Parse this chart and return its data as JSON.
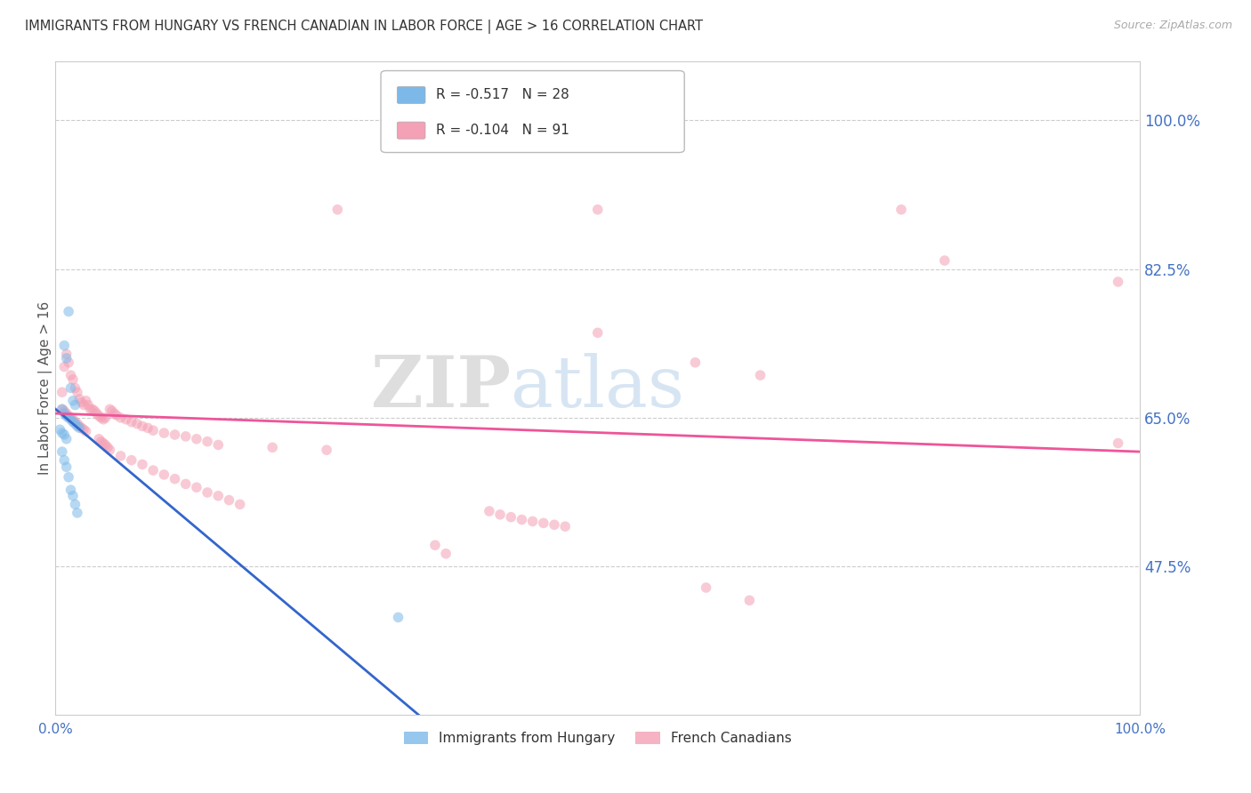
{
  "title": "IMMIGRANTS FROM HUNGARY VS FRENCH CANADIAN IN LABOR FORCE | AGE > 16 CORRELATION CHART",
  "source_text": "Source: ZipAtlas.com",
  "ylabel": "In Labor Force | Age > 16",
  "xlim": [
    0.0,
    1.0
  ],
  "ylim": [
    0.3,
    1.07
  ],
  "yticks": [
    0.475,
    0.65,
    0.825,
    1.0
  ],
  "ytick_labels": [
    "47.5%",
    "65.0%",
    "82.5%",
    "100.0%"
  ],
  "xticks": [
    0.0,
    0.2,
    0.4,
    0.6,
    0.8,
    1.0
  ],
  "xtick_labels": [
    "0.0%",
    "",
    "",
    "",
    "",
    "100.0%"
  ],
  "hungary_points": [
    [
      0.012,
      0.775
    ],
    [
      0.008,
      0.735
    ],
    [
      0.01,
      0.72
    ],
    [
      0.014,
      0.685
    ],
    [
      0.016,
      0.67
    ],
    [
      0.018,
      0.665
    ],
    [
      0.006,
      0.66
    ],
    [
      0.008,
      0.655
    ],
    [
      0.01,
      0.652
    ],
    [
      0.012,
      0.65
    ],
    [
      0.014,
      0.648
    ],
    [
      0.016,
      0.645
    ],
    [
      0.018,
      0.643
    ],
    [
      0.02,
      0.64
    ],
    [
      0.022,
      0.638
    ],
    [
      0.004,
      0.636
    ],
    [
      0.006,
      0.632
    ],
    [
      0.008,
      0.63
    ],
    [
      0.01,
      0.625
    ],
    [
      0.006,
      0.61
    ],
    [
      0.008,
      0.6
    ],
    [
      0.01,
      0.592
    ],
    [
      0.012,
      0.58
    ],
    [
      0.014,
      0.565
    ],
    [
      0.016,
      0.558
    ],
    [
      0.018,
      0.548
    ],
    [
      0.02,
      0.538
    ],
    [
      0.316,
      0.415
    ]
  ],
  "french_points": [
    [
      0.006,
      0.68
    ],
    [
      0.008,
      0.71
    ],
    [
      0.01,
      0.725
    ],
    [
      0.012,
      0.715
    ],
    [
      0.014,
      0.7
    ],
    [
      0.016,
      0.695
    ],
    [
      0.018,
      0.685
    ],
    [
      0.02,
      0.68
    ],
    [
      0.022,
      0.672
    ],
    [
      0.024,
      0.668
    ],
    [
      0.026,
      0.665
    ],
    [
      0.028,
      0.67
    ],
    [
      0.03,
      0.665
    ],
    [
      0.032,
      0.66
    ],
    [
      0.034,
      0.66
    ],
    [
      0.036,
      0.658
    ],
    [
      0.038,
      0.655
    ],
    [
      0.04,
      0.652
    ],
    [
      0.042,
      0.65
    ],
    [
      0.044,
      0.648
    ],
    [
      0.046,
      0.65
    ],
    [
      0.05,
      0.66
    ],
    [
      0.052,
      0.658
    ],
    [
      0.054,
      0.655
    ],
    [
      0.056,
      0.653
    ],
    [
      0.06,
      0.65
    ],
    [
      0.065,
      0.648
    ],
    [
      0.07,
      0.645
    ],
    [
      0.075,
      0.643
    ],
    [
      0.08,
      0.64
    ],
    [
      0.085,
      0.638
    ],
    [
      0.09,
      0.635
    ],
    [
      0.1,
      0.632
    ],
    [
      0.11,
      0.63
    ],
    [
      0.12,
      0.628
    ],
    [
      0.13,
      0.625
    ],
    [
      0.14,
      0.622
    ],
    [
      0.15,
      0.618
    ],
    [
      0.2,
      0.615
    ],
    [
      0.25,
      0.612
    ],
    [
      0.006,
      0.66
    ],
    [
      0.008,
      0.658
    ],
    [
      0.01,
      0.655
    ],
    [
      0.012,
      0.652
    ],
    [
      0.014,
      0.65
    ],
    [
      0.016,
      0.648
    ],
    [
      0.018,
      0.645
    ],
    [
      0.02,
      0.643
    ],
    [
      0.022,
      0.64
    ],
    [
      0.024,
      0.638
    ],
    [
      0.026,
      0.636
    ],
    [
      0.028,
      0.634
    ],
    [
      0.04,
      0.625
    ],
    [
      0.042,
      0.622
    ],
    [
      0.044,
      0.62
    ],
    [
      0.046,
      0.618
    ],
    [
      0.048,
      0.615
    ],
    [
      0.05,
      0.612
    ],
    [
      0.06,
      0.605
    ],
    [
      0.07,
      0.6
    ],
    [
      0.08,
      0.595
    ],
    [
      0.09,
      0.588
    ],
    [
      0.1,
      0.583
    ],
    [
      0.11,
      0.578
    ],
    [
      0.12,
      0.572
    ],
    [
      0.13,
      0.568
    ],
    [
      0.14,
      0.562
    ],
    [
      0.15,
      0.558
    ],
    [
      0.16,
      0.553
    ],
    [
      0.17,
      0.548
    ],
    [
      0.4,
      0.54
    ],
    [
      0.41,
      0.536
    ],
    [
      0.42,
      0.533
    ],
    [
      0.43,
      0.53
    ],
    [
      0.44,
      0.528
    ],
    [
      0.45,
      0.526
    ],
    [
      0.46,
      0.524
    ],
    [
      0.47,
      0.522
    ],
    [
      0.26,
      0.895
    ],
    [
      0.5,
      0.895
    ],
    [
      0.78,
      0.895
    ],
    [
      0.82,
      0.835
    ],
    [
      0.98,
      0.81
    ],
    [
      0.5,
      0.75
    ],
    [
      0.59,
      0.715
    ],
    [
      0.65,
      0.7
    ],
    [
      0.6,
      0.45
    ],
    [
      0.64,
      0.435
    ],
    [
      0.98,
      0.62
    ],
    [
      0.35,
      0.5
    ],
    [
      0.36,
      0.49
    ]
  ],
  "hungary_color": "#7DB9E8",
  "french_color": "#F4A0B5",
  "hungary_line_color": "#3366CC",
  "french_line_color": "#EE5599",
  "background_color": "#FFFFFF",
  "grid_color": "#CCCCCC",
  "axis_color": "#CCCCCC",
  "title_color": "#333333",
  "label_color": "#4472C4",
  "marker_size": 70,
  "marker_alpha": 0.55,
  "hungary_R": -0.517,
  "hungary_N": 28,
  "french_R": -0.104,
  "french_N": 91,
  "hungary_line_x0": 0.0,
  "hungary_line_y0": 0.66,
  "hungary_line_x1": 0.335,
  "hungary_line_y1": 0.3,
  "french_line_x0": 0.0,
  "french_line_y0": 0.655,
  "french_line_x1": 1.0,
  "french_line_y1": 0.61
}
